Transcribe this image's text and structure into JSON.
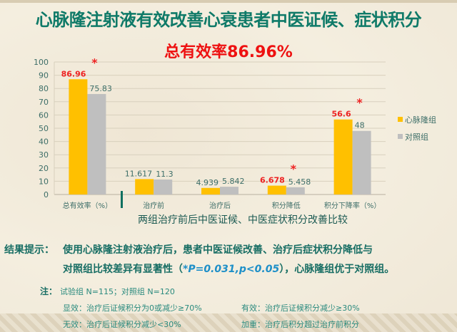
{
  "title": "心脉隆注射液有效改善心衰患者中医证候、症状积分",
  "subtitle": "总有效率86.96%",
  "chart_data": {
    "type": "bar",
    "categories": [
      "总有效率（%）",
      "治疗前",
      "治疗后",
      "积分降低",
      "积分下降率（%）"
    ],
    "series": [
      {
        "name": "心脉隆组",
        "values": [
          86.96,
          11.617,
          4.939,
          6.678,
          56.6
        ],
        "labels": [
          "86.96",
          "11.617",
          "4.939",
          "6.678",
          "56.6"
        ],
        "color": "#ffc000"
      },
      {
        "name": "对照组",
        "values": [
          75.83,
          11.3,
          5.842,
          5.458,
          48
        ],
        "labels": [
          "75.83",
          "11.3",
          "5.842",
          "5.458",
          "48"
        ],
        "color": "#bfbfbf"
      }
    ],
    "significance_marker": "*",
    "significant_categories": [
      0,
      3,
      4
    ],
    "highlight_label_color": "#ee2222",
    "label_color": "#3d6e68",
    "ylim": [
      0,
      100
    ],
    "yticks": [
      0,
      10,
      20,
      30,
      40,
      50,
      60,
      70,
      80,
      90,
      100
    ],
    "grid": true,
    "legend_position": "right",
    "xlabel": "两组治疗前后中医证候、中医症状积分改善比较"
  },
  "result": {
    "label": "结果提示：",
    "line1": "使用心脉隆注射液治疗后，患者中医证候改善、治疗后症状积分降低与",
    "line2_a": "对照组比较差异有显著性（",
    "p_value": "*P=0.031,p<0.05",
    "line2_b": "），心脉隆组优于对照组。"
  },
  "notes": {
    "label": "注：",
    "n": "试验组 N=115；对照组 N=120",
    "marked": "显效：治疗后证候积分为0或减少≥70%",
    "effective": "有效：治疗后证候积分减少≥30%",
    "ineffective": "无效：治疗后证候积分减少<30%",
    "worse": "加重：治疗后积分超过治疗前积分"
  }
}
